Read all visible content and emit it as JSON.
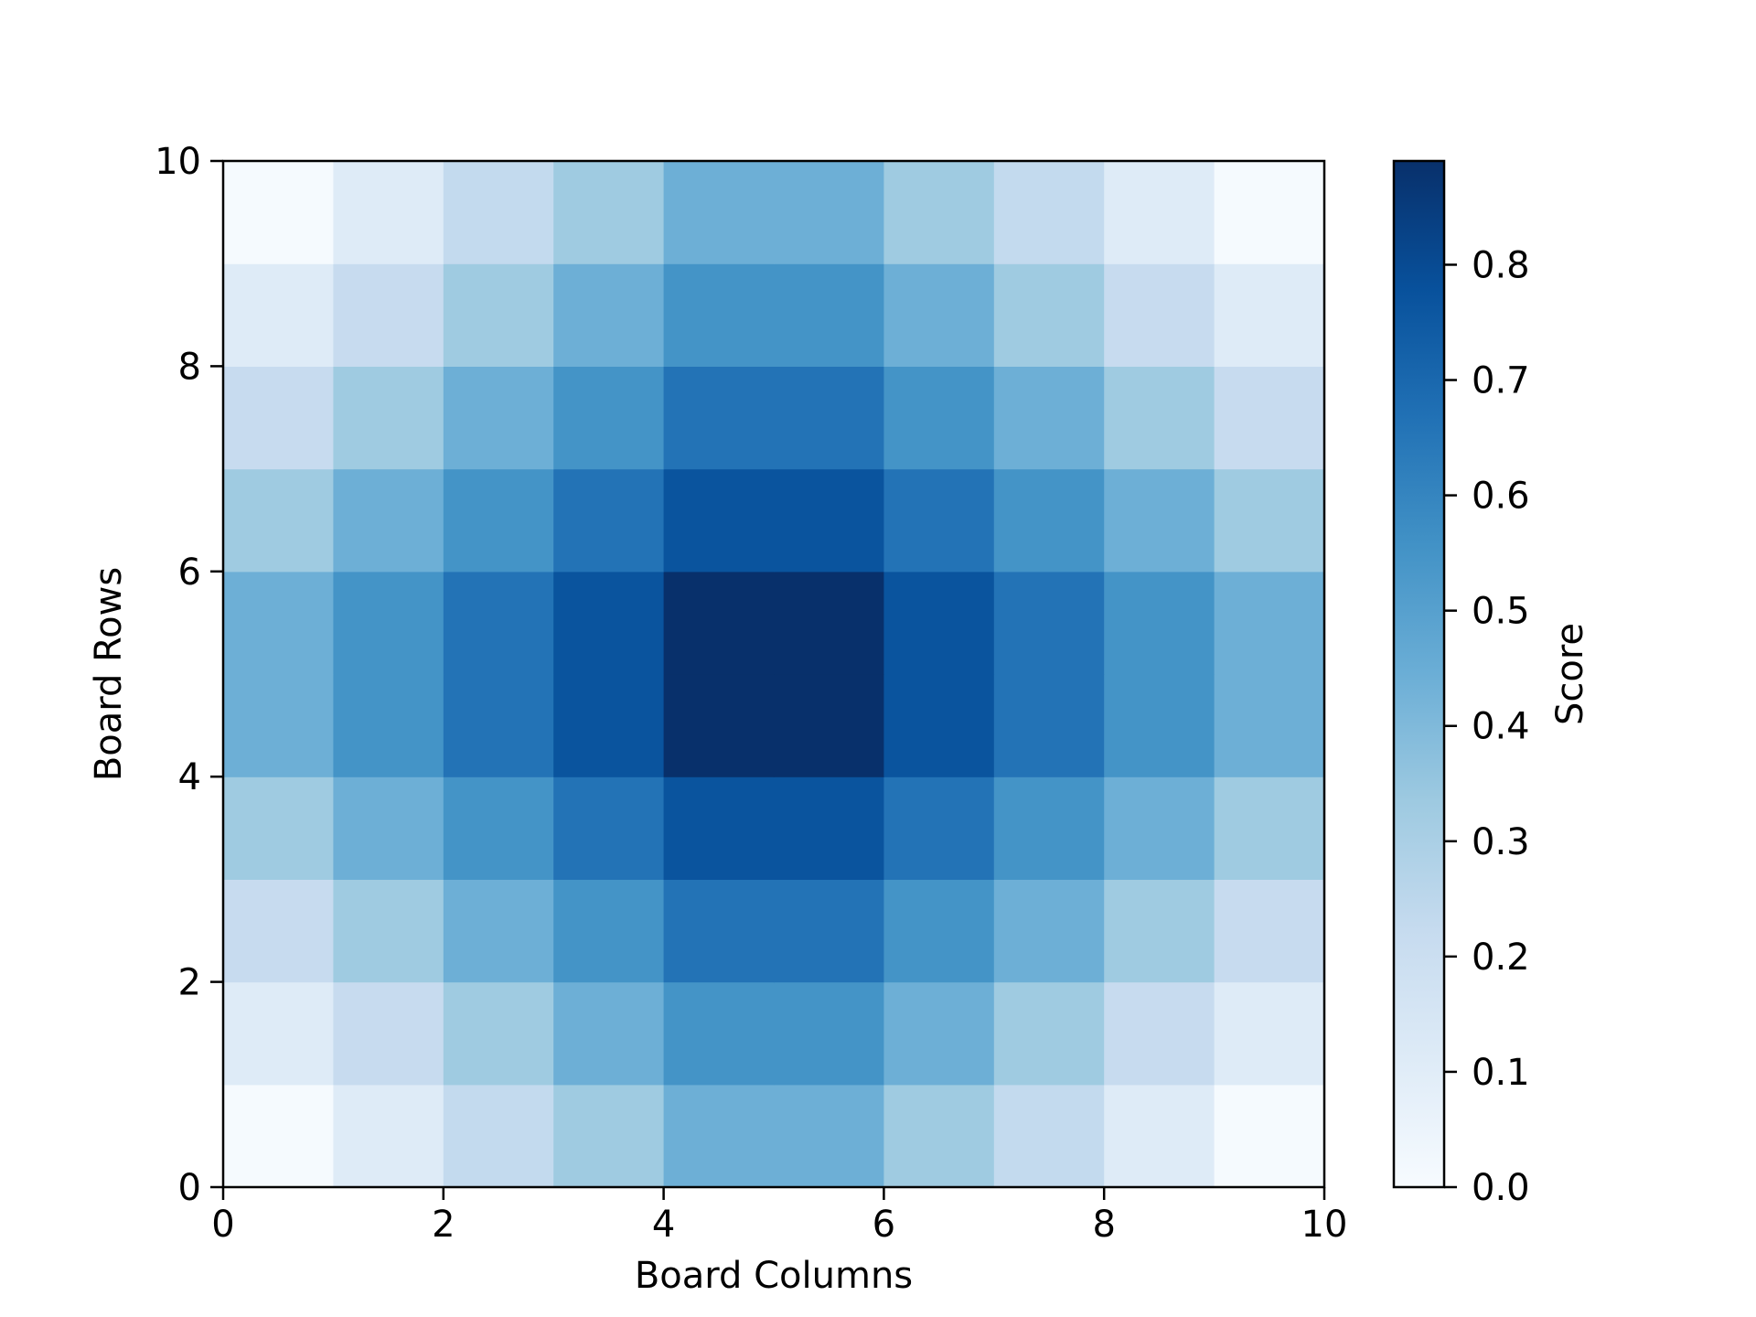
{
  "chart_data": {
    "type": "heatmap",
    "title": "",
    "xlabel": "Board Columns",
    "ylabel": "Board Rows",
    "colorbar_label": "Score",
    "colormap": "Blues",
    "xlim": [
      0,
      10
    ],
    "ylim": [
      0,
      10
    ],
    "xticks": [
      0,
      2,
      4,
      6,
      8,
      10
    ],
    "yticks": [
      0,
      2,
      4,
      6,
      8,
      10
    ],
    "colorbar_range": [
      0,
      0.89
    ],
    "colorbar_ticks": [
      "0.0",
      "0.1",
      "0.2",
      "0.3",
      "0.4",
      "0.5",
      "0.6",
      "0.7",
      "0.8"
    ],
    "grid": false,
    "row_order": "bottom-to-top",
    "values": [
      [
        0.01,
        0.11,
        0.23,
        0.33,
        0.44,
        0.44,
        0.33,
        0.23,
        0.11,
        0.01
      ],
      [
        0.11,
        0.22,
        0.33,
        0.44,
        0.55,
        0.55,
        0.44,
        0.33,
        0.22,
        0.11
      ],
      [
        0.22,
        0.33,
        0.44,
        0.55,
        0.66,
        0.66,
        0.55,
        0.44,
        0.33,
        0.22
      ],
      [
        0.33,
        0.44,
        0.55,
        0.66,
        0.77,
        0.77,
        0.66,
        0.55,
        0.44,
        0.33
      ],
      [
        0.44,
        0.55,
        0.66,
        0.77,
        0.89,
        0.89,
        0.77,
        0.66,
        0.55,
        0.44
      ],
      [
        0.44,
        0.55,
        0.66,
        0.77,
        0.89,
        0.89,
        0.77,
        0.66,
        0.55,
        0.44
      ],
      [
        0.33,
        0.44,
        0.55,
        0.66,
        0.77,
        0.77,
        0.66,
        0.55,
        0.44,
        0.33
      ],
      [
        0.22,
        0.33,
        0.44,
        0.55,
        0.66,
        0.66,
        0.55,
        0.44,
        0.33,
        0.22
      ],
      [
        0.11,
        0.22,
        0.33,
        0.44,
        0.55,
        0.55,
        0.44,
        0.33,
        0.22,
        0.11
      ],
      [
        0.01,
        0.11,
        0.23,
        0.33,
        0.44,
        0.44,
        0.33,
        0.23,
        0.11,
        0.01
      ]
    ]
  }
}
